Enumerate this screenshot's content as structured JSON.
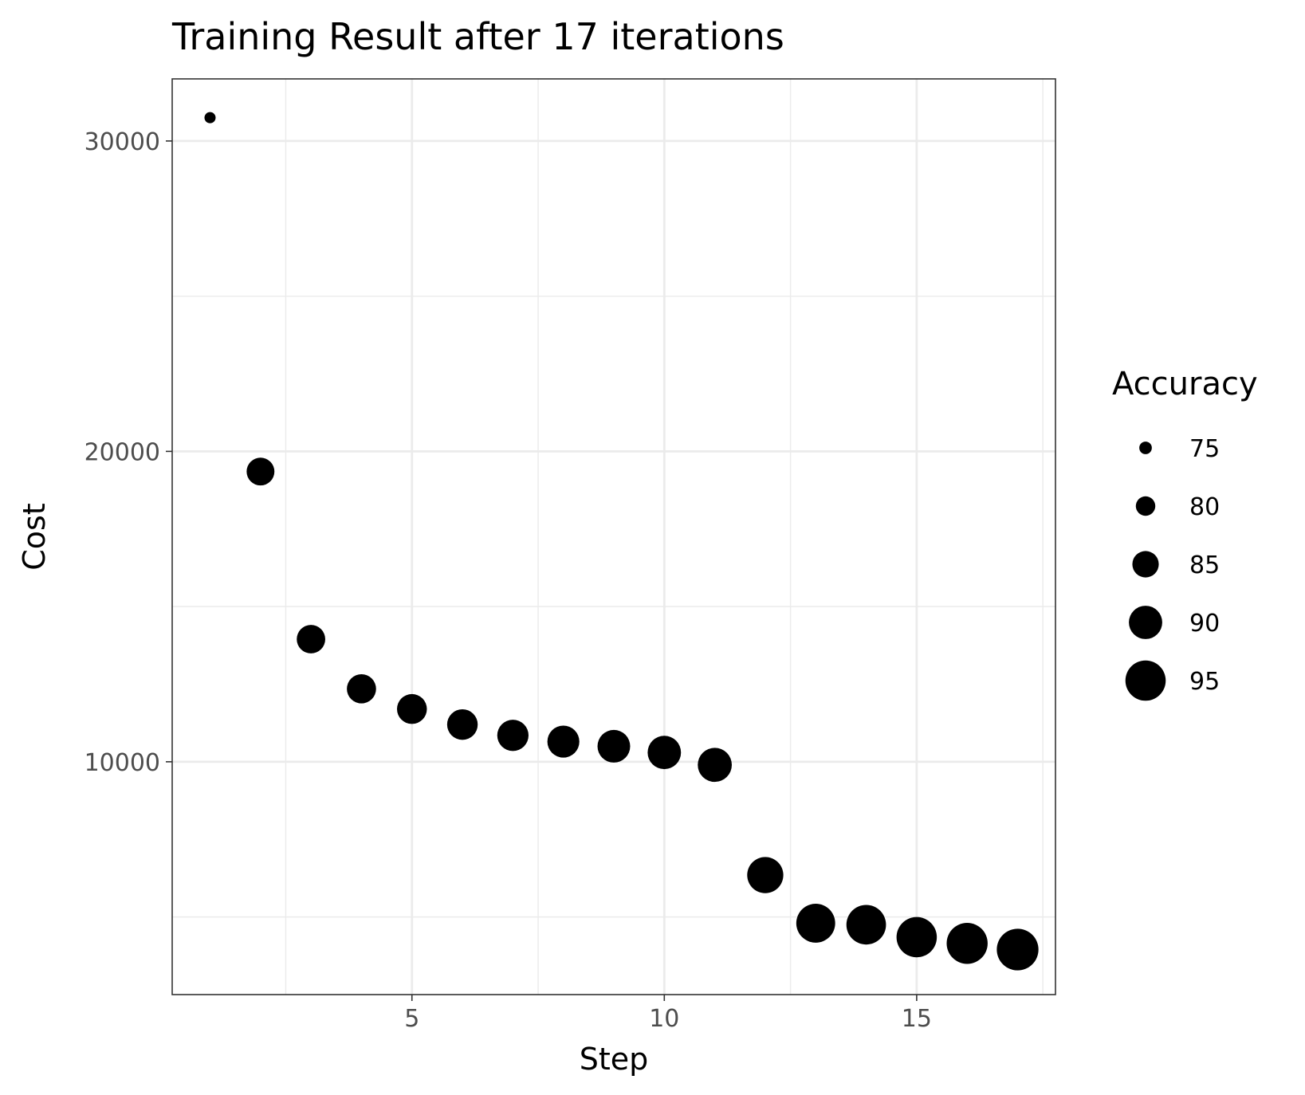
{
  "chart_data": {
    "type": "scatter",
    "title": "Training Result after 17 iterations",
    "xlabel": "Step",
    "ylabel": "Cost",
    "x_ticks": [
      5,
      10,
      15
    ],
    "y_ticks": [
      10000,
      20000,
      30000
    ],
    "x_tick_labels": [
      "5",
      "10",
      "15"
    ],
    "y_tick_labels": [
      "10000",
      "20000",
      "30000"
    ],
    "xlim": [
      0.25,
      17.75
    ],
    "ylim": [
      2500,
      32000
    ],
    "grid": true,
    "legend": {
      "title": "Accuracy",
      "position": "right",
      "entries": [
        {
          "label": "75",
          "value": 75
        },
        {
          "label": "80",
          "value": 80
        },
        {
          "label": "85",
          "value": 85
        },
        {
          "label": "90",
          "value": 90
        },
        {
          "label": "95",
          "value": 95
        }
      ]
    },
    "point_color": "#000000",
    "size_variable": "Accuracy",
    "points": [
      {
        "step": 1,
        "cost": 30750,
        "accuracy": 74
      },
      {
        "step": 2,
        "cost": 19350,
        "accuracy": 86
      },
      {
        "step": 3,
        "cost": 13950,
        "accuracy": 86.5
      },
      {
        "step": 4,
        "cost": 12350,
        "accuracy": 87
      },
      {
        "step": 5,
        "cost": 11700,
        "accuracy": 87.5
      },
      {
        "step": 6,
        "cost": 11200,
        "accuracy": 88
      },
      {
        "step": 7,
        "cost": 10850,
        "accuracy": 88.5
      },
      {
        "step": 8,
        "cost": 10650,
        "accuracy": 89
      },
      {
        "step": 9,
        "cost": 10500,
        "accuracy": 89.5
      },
      {
        "step": 10,
        "cost": 10300,
        "accuracy": 90
      },
      {
        "step": 11,
        "cost": 9900,
        "accuracy": 90.5
      },
      {
        "step": 12,
        "cost": 6350,
        "accuracy": 92
      },
      {
        "step": 13,
        "cost": 4800,
        "accuracy": 94
      },
      {
        "step": 14,
        "cost": 4750,
        "accuracy": 94.5
      },
      {
        "step": 15,
        "cost": 4350,
        "accuracy": 95
      },
      {
        "step": 16,
        "cost": 4150,
        "accuracy": 95.5
      },
      {
        "step": 17,
        "cost": 3950,
        "accuracy": 96
      }
    ]
  }
}
